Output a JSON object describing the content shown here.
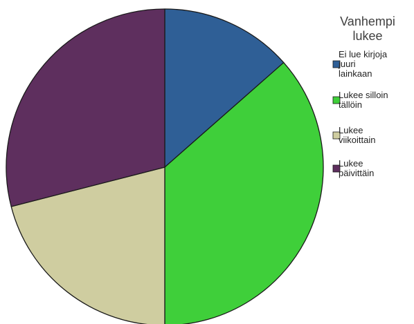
{
  "chart_data": {
    "type": "pie",
    "legend_title": "Vanhempi lukee",
    "legend_title_lines": [
      "Vanhempi",
      "lukee"
    ],
    "legend_position": "right",
    "slices": [
      {
        "label": "Ei lue kirjoja juuri lainkaan",
        "label_lines": [
          "Ei lue kirjoja",
          "juuri",
          "lainkaan"
        ],
        "value": 13.5,
        "color": "#2f5f96"
      },
      {
        "label": "Lukee silloin tällöin",
        "label_lines": [
          "Lukee silloin",
          "tällöin"
        ],
        "value": 36.5,
        "color": "#3fcf3a"
      },
      {
        "label": "Lukee viikoittain",
        "label_lines": [
          "Lukee",
          "viikoittain"
        ],
        "value": 21,
        "color": "#cfcda0"
      },
      {
        "label": "Lukee päivittäin",
        "label_lines": [
          "Lukee",
          "päivittäin"
        ],
        "value": 29,
        "color": "#5e2f5e"
      }
    ]
  }
}
